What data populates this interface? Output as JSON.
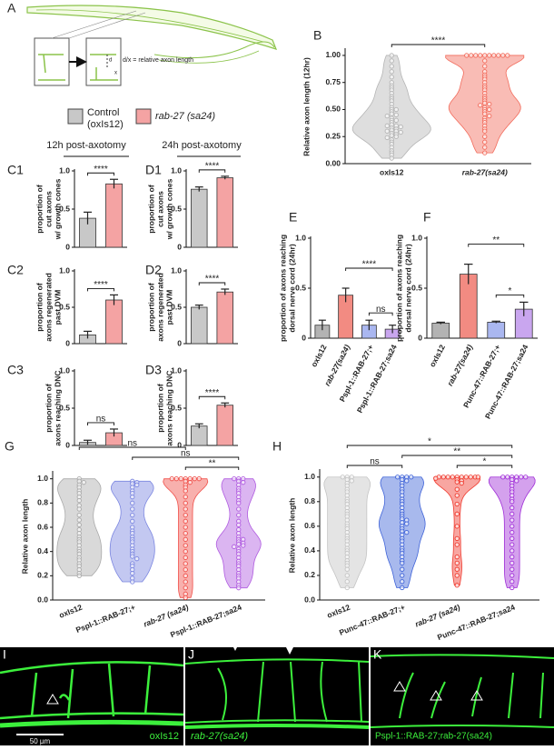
{
  "figure": {
    "panel_a": {
      "label": "A",
      "annotation": "d/x = relative axon length",
      "d": "d",
      "x": "x"
    },
    "legend": [
      {
        "lines": [
          "Control",
          "(oxIs12)"
        ],
        "color": "#c8c8c8"
      },
      {
        "lines": [
          "rab-27 (sa24)"
        ],
        "color": "#f4a3a3"
      }
    ],
    "column_headers": [
      "12h post-axotomy",
      "24h post-axotomy"
    ],
    "micrographs": [
      {
        "label": "I",
        "caption": "oxIs12",
        "scale_bar": "50 µm"
      },
      {
        "label": "J",
        "caption": "rab-27(sa24)"
      },
      {
        "label": "K",
        "caption": "Pspl-1::RAB-27;rab-27(sa24)"
      }
    ]
  },
  "chart_data": [
    {
      "type": "violin",
      "panel": "B",
      "ylabel": [
        "Relative axon length (12hr)"
      ],
      "categories": [
        "oxIs12",
        "rab-27(sa24)"
      ],
      "colors": [
        "#b5b5b5",
        "#f26b5b"
      ],
      "values": [
        [
          1.0,
          0.95,
          0.9,
          0.85,
          0.8,
          0.75,
          0.72,
          0.7,
          0.68,
          0.65,
          0.62,
          0.6,
          0.58,
          0.55,
          0.52,
          0.5,
          0.5,
          0.48,
          0.46,
          0.45,
          0.44,
          0.42,
          0.4,
          0.4,
          0.38,
          0.36,
          0.35,
          0.35,
          0.34,
          0.33,
          0.32,
          0.31,
          0.3,
          0.3,
          0.29,
          0.28,
          0.27,
          0.26,
          0.25,
          0.24,
          0.22,
          0.2,
          0.18,
          0.15,
          0.12,
          0.1,
          0.08,
          0.05
        ],
        [
          1,
          1,
          1,
          1,
          1,
          1,
          1,
          1,
          1,
          1,
          0.95,
          0.9,
          0.85,
          0.82,
          0.8,
          0.78,
          0.75,
          0.72,
          0.7,
          0.68,
          0.65,
          0.62,
          0.6,
          0.58,
          0.56,
          0.55,
          0.54,
          0.52,
          0.5,
          0.5,
          0.48,
          0.46,
          0.44,
          0.42,
          0.4,
          0.38,
          0.35,
          0.32,
          0.3,
          0.25,
          0.2,
          0.15,
          0.1
        ]
      ],
      "ylim": [
        0,
        1.05
      ],
      "yticks": [
        {
          "value": 0,
          "label": "0.00"
        },
        {
          "value": 0.25,
          "label": "0.25"
        },
        {
          "value": 0.5,
          "label": "0.50"
        },
        {
          "value": 0.75,
          "label": "0.75"
        },
        {
          "value": 1,
          "label": "1.00"
        }
      ],
      "significance": [
        "****"
      ]
    },
    {
      "type": "bar",
      "panel": "C1",
      "ylabel": [
        "proportion of",
        "cut axons",
        "w/ growth cones"
      ],
      "values": [
        0.38,
        0.83
      ],
      "errors": [
        0.08,
        0.06
      ],
      "colors": [
        "#c8c8c8",
        "#f4a3a3"
      ],
      "ylim": [
        0,
        1
      ],
      "yticks": [
        0,
        0.5,
        {
          "value": 1,
          "label": "1.0"
        }
      ],
      "significance": [
        "****"
      ]
    },
    {
      "type": "bar",
      "panel": "D1",
      "ylabel": [
        "proportion of",
        "cut axons",
        "w/ growth cones"
      ],
      "values": [
        0.76,
        0.91
      ],
      "errors": [
        0.03,
        0.02
      ],
      "colors": [
        "#c8c8c8",
        "#f4a3a3"
      ],
      "ylim": [
        0,
        1
      ],
      "yticks": [
        0,
        0.5,
        {
          "value": 1,
          "label": "1.0"
        }
      ],
      "significance": [
        "****"
      ]
    },
    {
      "type": "bar",
      "panel": "C2",
      "ylabel": [
        "proportion of",
        "axons regenerated",
        "past DVM"
      ],
      "values": [
        0.12,
        0.6
      ],
      "errors": [
        0.05,
        0.07
      ],
      "colors": [
        "#c8c8c8",
        "#f4a3a3"
      ],
      "ylim": [
        0,
        1
      ],
      "yticks": [
        0,
        0.5,
        {
          "value": 1,
          "label": "1.0"
        }
      ],
      "significance": [
        "****"
      ]
    },
    {
      "type": "bar",
      "panel": "D2",
      "ylabel": [
        "proportion of",
        "axons regenerated",
        "past DVM"
      ],
      "values": [
        0.5,
        0.71
      ],
      "errors": [
        0.03,
        0.04
      ],
      "colors": [
        "#c8c8c8",
        "#f4a3a3"
      ],
      "ylim": [
        0,
        1
      ],
      "yticks": [
        0,
        0.5,
        {
          "value": 1,
          "label": "1.0"
        }
      ],
      "significance": [
        "****"
      ]
    },
    {
      "type": "bar",
      "panel": "C3",
      "ylabel": [
        "proportion of",
        "axons reaching DNC"
      ],
      "values": [
        0.04,
        0.17
      ],
      "errors": [
        0.03,
        0.05
      ],
      "colors": [
        "#c8c8c8",
        "#f4a3a3"
      ],
      "ylim": [
        0,
        1
      ],
      "yticks": [
        0,
        0.5,
        {
          "value": 1,
          "label": "1.0"
        }
      ],
      "significance": [
        "ns"
      ]
    },
    {
      "type": "bar",
      "panel": "D3",
      "ylabel": [
        "proportion of",
        "axons reaching DNC"
      ],
      "values": [
        0.26,
        0.54
      ],
      "errors": [
        0.03,
        0.03
      ],
      "colors": [
        "#c8c8c8",
        "#f4a3a3"
      ],
      "ylim": [
        0,
        1
      ],
      "yticks": [
        0,
        0.5,
        {
          "value": 1,
          "label": "1.0"
        }
      ],
      "significance": [
        "****"
      ]
    },
    {
      "type": "bar",
      "panel": "E",
      "ylabel": [
        "proportion of axons reaching",
        "dorsal nerve cord (24hr)"
      ],
      "categories": [
        "oxIs12",
        "rab-27(sa24)",
        "Pspl-1::RAB-27;+",
        "Pspl-1::RAB-27;sa24"
      ],
      "values": [
        0.13,
        0.43,
        0.13,
        0.09
      ],
      "errors": [
        0.05,
        0.07,
        0.05,
        0.04
      ],
      "colors": [
        "#b3b3b3",
        "#f28b82",
        "#aab7f0",
        "#c9a6ef"
      ],
      "ylim": [
        0,
        1
      ],
      "yticks": [
        0,
        0.5,
        {
          "value": 1,
          "label": "1.0"
        }
      ],
      "significance": [
        "****",
        "ns"
      ]
    },
    {
      "type": "bar",
      "panel": "F",
      "ylabel": [
        "proportion of axons reaching",
        "dorsal nerve cord (24hr)"
      ],
      "categories": [
        "oxIs12",
        "rab-27(sa24)",
        "Punc-47::RAB-27;+",
        "Punc-47::RAB-27;sa24"
      ],
      "values": [
        0.15,
        0.64,
        0.16,
        0.29
      ],
      "errors": [
        0.01,
        0.1,
        0.01,
        0.07
      ],
      "colors": [
        "#b3b3b3",
        "#f28b82",
        "#aab7f0",
        "#c9a6ef"
      ],
      "ylim": [
        0,
        1
      ],
      "yticks": [
        0,
        0.5,
        {
          "value": 1,
          "label": "1.0"
        }
      ],
      "significance": [
        "**",
        "*"
      ]
    },
    {
      "type": "violin",
      "panel": "G",
      "ylabel": [
        "Relative axon length"
      ],
      "categories": [
        "oxIs12",
        "Pspl-1::RAB-27;+",
        "rab-27 (sa24)",
        "Pspl-1::RAB-27;sa24"
      ],
      "colors": [
        "#aaaaaa",
        "#7b86e0",
        "#f0504a",
        "#b05ce0"
      ],
      "values": [
        [
          1,
          0.98,
          0.97,
          0.95,
          0.93,
          0.9,
          0.88,
          0.85,
          0.82,
          0.78,
          0.75,
          0.7,
          0.66,
          0.62,
          0.58,
          0.55,
          0.52,
          0.5,
          0.48,
          0.45,
          0.42,
          0.4,
          0.38,
          0.35,
          0.33,
          0.3,
          0.28,
          0.25,
          0.22,
          0.2
        ],
        [
          0.98,
          0.97,
          0.96,
          0.95,
          0.93,
          0.9,
          0.88,
          0.85,
          0.8,
          0.75,
          0.7,
          0.65,
          0.6,
          0.57,
          0.55,
          0.52,
          0.5,
          0.48,
          0.45,
          0.42,
          0.4,
          0.38,
          0.36,
          0.34,
          0.3,
          0.28,
          0.25,
          0.22,
          0.18,
          0.15
        ],
        [
          1,
          1,
          1,
          1,
          1,
          1,
          1,
          0.98,
          0.97,
          0.95,
          0.93,
          0.9,
          0.85,
          0.8,
          0.75,
          0.7,
          0.65,
          0.6,
          0.55,
          0.5,
          0.45,
          0.4,
          0.35,
          0.3,
          0.25,
          0.2,
          0.15,
          0.1,
          0.05,
          0.02
        ],
        [
          1,
          1,
          1,
          0.98,
          0.97,
          0.95,
          0.92,
          0.9,
          0.88,
          0.85,
          0.82,
          0.8,
          0.75,
          0.7,
          0.65,
          0.62,
          0.58,
          0.55,
          0.52,
          0.5,
          0.5,
          0.48,
          0.47,
          0.46,
          0.45,
          0.44,
          0.42,
          0.4,
          0.38,
          0.35,
          0.32,
          0.3,
          0.28,
          0.25,
          0.22,
          0.2,
          0.18,
          0.15,
          0.12,
          0.1
        ]
      ],
      "ylim": [
        0,
        1.05
      ],
      "yticks": [
        {
          "value": 0,
          "label": "0.0"
        },
        {
          "value": 0.2,
          "label": "0.2"
        },
        {
          "value": 0.4,
          "label": "0.4"
        },
        {
          "value": 0.6,
          "label": "0.6"
        },
        {
          "value": 0.8,
          "label": "0.8"
        },
        {
          "value": 1,
          "label": "1.0"
        }
      ],
      "significance": [
        "ns",
        "ns",
        "**"
      ]
    },
    {
      "type": "violin",
      "panel": "H",
      "ylabel": [
        "Relative axon length"
      ],
      "categories": [
        "oxIs12",
        "Punc-47::RAB-27;+",
        "rab-27 (sa24)",
        "Punc-47::RAB-27;sa24"
      ],
      "colors": [
        "#c4c4c4",
        "#3f63d8",
        "#f03a2e",
        "#a02ed8"
      ],
      "values": [
        [
          1,
          1,
          1,
          0.98,
          0.97,
          0.95,
          0.93,
          0.9,
          0.88,
          0.85,
          0.82,
          0.8,
          0.78,
          0.75,
          0.72,
          0.7,
          0.68,
          0.65,
          0.62,
          0.6,
          0.58,
          0.55,
          0.52,
          0.5,
          0.48,
          0.45,
          0.42,
          0.4,
          0.38,
          0.35,
          0.32,
          0.3,
          0.28,
          0.25,
          0.2,
          0.15,
          0.1
        ],
        [
          1,
          1,
          1,
          1,
          0.98,
          0.97,
          0.95,
          0.93,
          0.9,
          0.88,
          0.85,
          0.82,
          0.8,
          0.78,
          0.75,
          0.72,
          0.7,
          0.68,
          0.66,
          0.65,
          0.63,
          0.62,
          0.6,
          0.58,
          0.56,
          0.55,
          0.53,
          0.5,
          0.48,
          0.45,
          0.42,
          0.4,
          0.38,
          0.35,
          0.32,
          0.3,
          0.25,
          0.2,
          0.15,
          0.1
        ],
        [
          1,
          1,
          1,
          1,
          1,
          1,
          1,
          1,
          1,
          1,
          0.99,
          0.98,
          0.97,
          0.96,
          0.95,
          0.9,
          0.85,
          0.78,
          0.7,
          0.6,
          0.5,
          0.45,
          0.35,
          0.3,
          0.25,
          0.2,
          0.12
        ],
        [
          1,
          1,
          1,
          1,
          1,
          1,
          0.98,
          0.97,
          0.95,
          0.93,
          0.9,
          0.88,
          0.85,
          0.82,
          0.8,
          0.75,
          0.7,
          0.65,
          0.6,
          0.55,
          0.5,
          0.45,
          0.4,
          0.35,
          0.3,
          0.25,
          0.2,
          0.15,
          0.1
        ]
      ],
      "ylim": [
        0,
        1.05
      ],
      "yticks": [
        {
          "value": 0,
          "label": "0.0"
        },
        {
          "value": 0.2,
          "label": "0.2"
        },
        {
          "value": 0.4,
          "label": "0.4"
        },
        {
          "value": 0.6,
          "label": "0.6"
        },
        {
          "value": 0.8,
          "label": "0.8"
        },
        {
          "value": 1,
          "label": "1.0"
        }
      ],
      "significance": [
        "*",
        "**",
        "ns",
        "*"
      ]
    }
  ]
}
